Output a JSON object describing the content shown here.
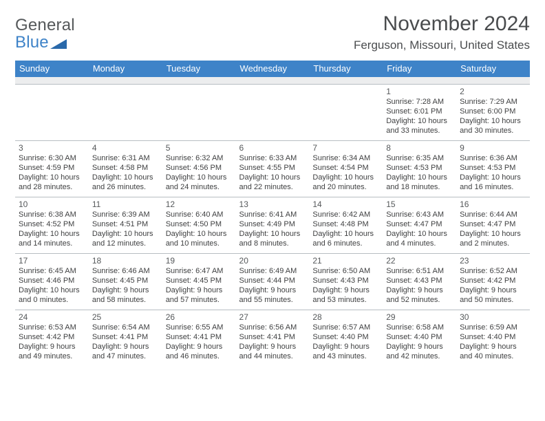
{
  "logo": {
    "line1": "General",
    "line2": "Blue",
    "tri_color": "#2a69aa"
  },
  "title": "November 2024",
  "location": "Ferguson, Missouri, United States",
  "header_bg": "#3e83c8",
  "header_fg": "#ffffff",
  "gap_bg": "#ecedee",
  "border_color": "#b7bdc2",
  "text_color": "#3e3f40",
  "days_of_week": [
    "Sunday",
    "Monday",
    "Tuesday",
    "Wednesday",
    "Thursday",
    "Friday",
    "Saturday"
  ],
  "weeks": [
    [
      null,
      null,
      null,
      null,
      null,
      {
        "n": "1",
        "sr": "7:28 AM",
        "ss": "6:01 PM",
        "dl1": "Daylight: 10 hours",
        "dl2": "and 33 minutes."
      },
      {
        "n": "2",
        "sr": "7:29 AM",
        "ss": "6:00 PM",
        "dl1": "Daylight: 10 hours",
        "dl2": "and 30 minutes."
      }
    ],
    [
      {
        "n": "3",
        "sr": "6:30 AM",
        "ss": "4:59 PM",
        "dl1": "Daylight: 10 hours",
        "dl2": "and 28 minutes."
      },
      {
        "n": "4",
        "sr": "6:31 AM",
        "ss": "4:58 PM",
        "dl1": "Daylight: 10 hours",
        "dl2": "and 26 minutes."
      },
      {
        "n": "5",
        "sr": "6:32 AM",
        "ss": "4:56 PM",
        "dl1": "Daylight: 10 hours",
        "dl2": "and 24 minutes."
      },
      {
        "n": "6",
        "sr": "6:33 AM",
        "ss": "4:55 PM",
        "dl1": "Daylight: 10 hours",
        "dl2": "and 22 minutes."
      },
      {
        "n": "7",
        "sr": "6:34 AM",
        "ss": "4:54 PM",
        "dl1": "Daylight: 10 hours",
        "dl2": "and 20 minutes."
      },
      {
        "n": "8",
        "sr": "6:35 AM",
        "ss": "4:53 PM",
        "dl1": "Daylight: 10 hours",
        "dl2": "and 18 minutes."
      },
      {
        "n": "9",
        "sr": "6:36 AM",
        "ss": "4:53 PM",
        "dl1": "Daylight: 10 hours",
        "dl2": "and 16 minutes."
      }
    ],
    [
      {
        "n": "10",
        "sr": "6:38 AM",
        "ss": "4:52 PM",
        "dl1": "Daylight: 10 hours",
        "dl2": "and 14 minutes."
      },
      {
        "n": "11",
        "sr": "6:39 AM",
        "ss": "4:51 PM",
        "dl1": "Daylight: 10 hours",
        "dl2": "and 12 minutes."
      },
      {
        "n": "12",
        "sr": "6:40 AM",
        "ss": "4:50 PM",
        "dl1": "Daylight: 10 hours",
        "dl2": "and 10 minutes."
      },
      {
        "n": "13",
        "sr": "6:41 AM",
        "ss": "4:49 PM",
        "dl1": "Daylight: 10 hours",
        "dl2": "and 8 minutes."
      },
      {
        "n": "14",
        "sr": "6:42 AM",
        "ss": "4:48 PM",
        "dl1": "Daylight: 10 hours",
        "dl2": "and 6 minutes."
      },
      {
        "n": "15",
        "sr": "6:43 AM",
        "ss": "4:47 PM",
        "dl1": "Daylight: 10 hours",
        "dl2": "and 4 minutes."
      },
      {
        "n": "16",
        "sr": "6:44 AM",
        "ss": "4:47 PM",
        "dl1": "Daylight: 10 hours",
        "dl2": "and 2 minutes."
      }
    ],
    [
      {
        "n": "17",
        "sr": "6:45 AM",
        "ss": "4:46 PM",
        "dl1": "Daylight: 10 hours",
        "dl2": "and 0 minutes."
      },
      {
        "n": "18",
        "sr": "6:46 AM",
        "ss": "4:45 PM",
        "dl1": "Daylight: 9 hours",
        "dl2": "and 58 minutes."
      },
      {
        "n": "19",
        "sr": "6:47 AM",
        "ss": "4:45 PM",
        "dl1": "Daylight: 9 hours",
        "dl2": "and 57 minutes."
      },
      {
        "n": "20",
        "sr": "6:49 AM",
        "ss": "4:44 PM",
        "dl1": "Daylight: 9 hours",
        "dl2": "and 55 minutes."
      },
      {
        "n": "21",
        "sr": "6:50 AM",
        "ss": "4:43 PM",
        "dl1": "Daylight: 9 hours",
        "dl2": "and 53 minutes."
      },
      {
        "n": "22",
        "sr": "6:51 AM",
        "ss": "4:43 PM",
        "dl1": "Daylight: 9 hours",
        "dl2": "and 52 minutes."
      },
      {
        "n": "23",
        "sr": "6:52 AM",
        "ss": "4:42 PM",
        "dl1": "Daylight: 9 hours",
        "dl2": "and 50 minutes."
      }
    ],
    [
      {
        "n": "24",
        "sr": "6:53 AM",
        "ss": "4:42 PM",
        "dl1": "Daylight: 9 hours",
        "dl2": "and 49 minutes."
      },
      {
        "n": "25",
        "sr": "6:54 AM",
        "ss": "4:41 PM",
        "dl1": "Daylight: 9 hours",
        "dl2": "and 47 minutes."
      },
      {
        "n": "26",
        "sr": "6:55 AM",
        "ss": "4:41 PM",
        "dl1": "Daylight: 9 hours",
        "dl2": "and 46 minutes."
      },
      {
        "n": "27",
        "sr": "6:56 AM",
        "ss": "4:41 PM",
        "dl1": "Daylight: 9 hours",
        "dl2": "and 44 minutes."
      },
      {
        "n": "28",
        "sr": "6:57 AM",
        "ss": "4:40 PM",
        "dl1": "Daylight: 9 hours",
        "dl2": "and 43 minutes."
      },
      {
        "n": "29",
        "sr": "6:58 AM",
        "ss": "4:40 PM",
        "dl1": "Daylight: 9 hours",
        "dl2": "and 42 minutes."
      },
      {
        "n": "30",
        "sr": "6:59 AM",
        "ss": "4:40 PM",
        "dl1": "Daylight: 9 hours",
        "dl2": "and 40 minutes."
      }
    ]
  ],
  "labels": {
    "sunrise": "Sunrise: ",
    "sunset": "Sunset: "
  }
}
